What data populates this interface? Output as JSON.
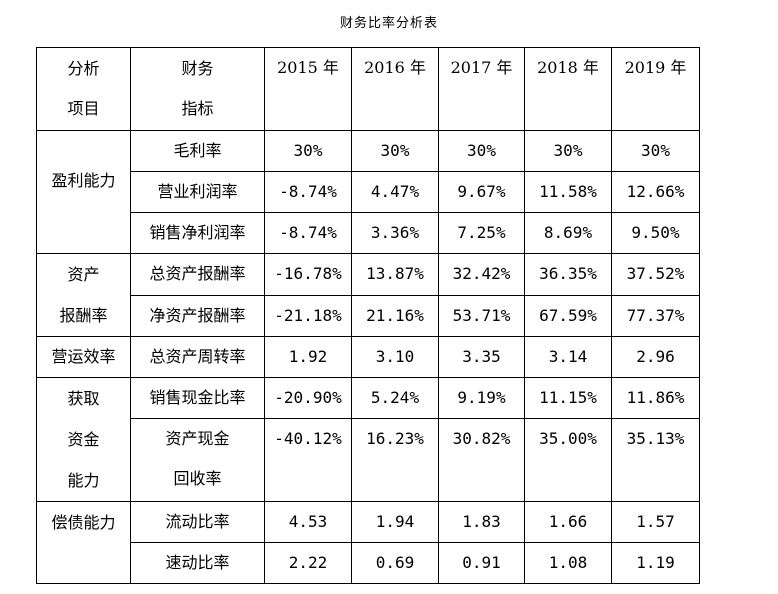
{
  "title": "财务比率分析表",
  "header": {
    "col1": [
      "分析",
      "项目"
    ],
    "col2": [
      "财务",
      "指标"
    ],
    "years": [
      "2015 年",
      "2016 年",
      "2017 年",
      "2018 年",
      "2019 年"
    ]
  },
  "groups": [
    {
      "category": [
        "盈利能力"
      ],
      "rows": [
        {
          "metric": [
            "毛利率"
          ],
          "values": [
            "30%",
            "30%",
            "30%",
            "30%",
            "30%"
          ]
        },
        {
          "metric": [
            "营业利润率"
          ],
          "values": [
            "-8.74%",
            "4.47%",
            "9.67%",
            "11.58%",
            "12.66%"
          ]
        },
        {
          "metric": [
            "销售净利润率"
          ],
          "values": [
            "-8.74%",
            "3.36%",
            "7.25%",
            "8.69%",
            "9.50%"
          ]
        }
      ]
    },
    {
      "category": [
        "资产",
        "报酬率"
      ],
      "rows": [
        {
          "metric": [
            "总资产报酬率"
          ],
          "values": [
            "-16.78%",
            "13.87%",
            "32.42%",
            "36.35%",
            "37.52%"
          ]
        },
        {
          "metric": [
            "净资产报酬率"
          ],
          "values": [
            "-21.18%",
            "21.16%",
            "53.71%",
            "67.59%",
            "77.37%"
          ]
        }
      ]
    },
    {
      "category": [
        "营运效率"
      ],
      "rows": [
        {
          "metric": [
            "总资产周转率"
          ],
          "values": [
            "1.92",
            "3.10",
            "3.35",
            "3.14",
            "2.96"
          ]
        }
      ]
    },
    {
      "category": [
        "获取",
        "资金",
        "能力"
      ],
      "rows": [
        {
          "metric": [
            "销售现金比率"
          ],
          "values": [
            "-20.90%",
            "5.24%",
            "9.19%",
            "11.15%",
            "11.86%"
          ]
        },
        {
          "metric": [
            "资产现金",
            "回收率"
          ],
          "values": [
            "-40.12%",
            "16.23%",
            "30.82%",
            "35.00%",
            "35.13%"
          ]
        }
      ]
    },
    {
      "category": [
        "偿债能力"
      ],
      "rows": [
        {
          "metric": [
            "流动比率"
          ],
          "values": [
            "4.53",
            "1.94",
            "1.83",
            "1.66",
            "1.57"
          ]
        },
        {
          "metric": [
            "速动比率"
          ],
          "values": [
            "2.22",
            "0.69",
            "0.91",
            "1.08",
            "1.19"
          ]
        }
      ]
    }
  ]
}
